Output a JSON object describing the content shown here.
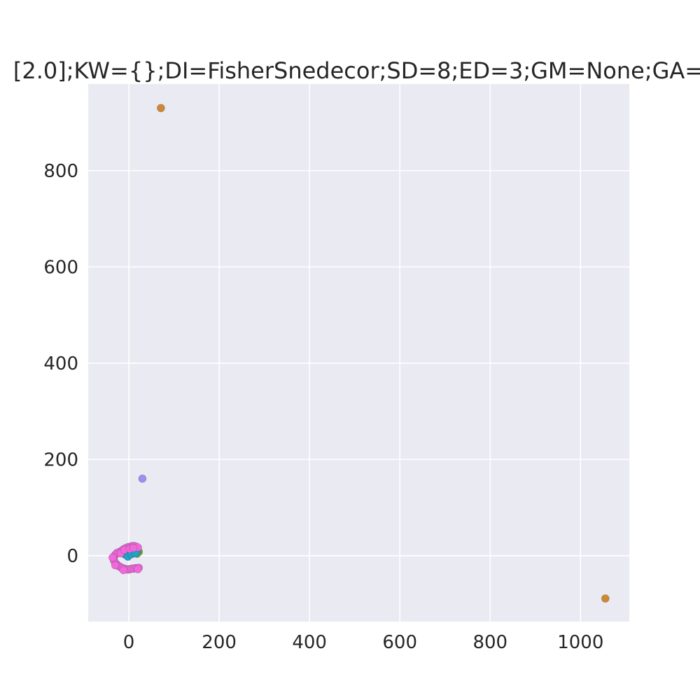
{
  "chart_data": {
    "type": "scatter",
    "title": "[2.0];KW={};DI=FisherSnedecor;SD=8;ED=3;GM=None;GA=",
    "xlabel": "",
    "ylabel": "",
    "xlim": [
      -90,
      1108
    ],
    "ylim": [
      -137,
      980
    ],
    "x_ticks": [
      0,
      200,
      400,
      600,
      800,
      1000
    ],
    "y_ticks": [
      0,
      200,
      400,
      600,
      800
    ],
    "grid": true,
    "background": "#eaeaf2",
    "grid_color": "#ffffff",
    "series": [
      {
        "color": "#cd8833",
        "points": [
          [
            71,
            930
          ],
          [
            1055,
            -89
          ]
        ]
      },
      {
        "color": "#9b8fef",
        "points": [
          [
            30,
            160
          ]
        ]
      },
      {
        "color": "#5fa052",
        "points": [
          [
            22,
            8
          ],
          [
            18,
            4
          ],
          [
            12,
            12
          ]
        ]
      },
      {
        "color": "#1fa3c9",
        "points": [
          [
            -8,
            2
          ],
          [
            -4,
            4
          ],
          [
            0,
            5
          ],
          [
            4,
            6
          ],
          [
            8,
            7
          ],
          [
            12,
            8
          ],
          [
            16,
            9
          ],
          [
            -2,
            -2
          ],
          [
            6,
            3
          ],
          [
            14,
            5
          ]
        ]
      },
      {
        "color": "#f068dc",
        "points": [
          [
            -20,
            8
          ],
          [
            -16,
            10
          ],
          [
            -12,
            13
          ],
          [
            -8,
            15
          ],
          [
            -4,
            17
          ],
          [
            0,
            18
          ],
          [
            4,
            19
          ],
          [
            8,
            20
          ],
          [
            12,
            20
          ],
          [
            16,
            19
          ],
          [
            20,
            17
          ],
          [
            -26,
            6
          ],
          [
            -30,
            2
          ],
          [
            -33,
            -2
          ],
          [
            -34,
            -6
          ],
          [
            -33,
            -10
          ],
          [
            -31,
            -14
          ],
          [
            -28,
            -17
          ],
          [
            -25,
            -20
          ],
          [
            -22,
            -22
          ],
          [
            -18,
            -24
          ],
          [
            -14,
            -26
          ],
          [
            -10,
            -27
          ],
          [
            -6,
            -28
          ],
          [
            -2,
            -29
          ],
          [
            2,
            -28
          ],
          [
            6,
            -27
          ],
          [
            10,
            -27
          ],
          [
            14,
            -26
          ],
          [
            18,
            -26
          ],
          [
            22,
            -25
          ],
          [
            -36,
            -4
          ],
          [
            -30,
            -20
          ],
          [
            -12,
            -30
          ],
          [
            20,
            -28
          ],
          [
            -18,
            5
          ],
          [
            -10,
            12
          ],
          [
            2,
            14
          ],
          [
            10,
            16
          ]
        ]
      }
    ]
  }
}
